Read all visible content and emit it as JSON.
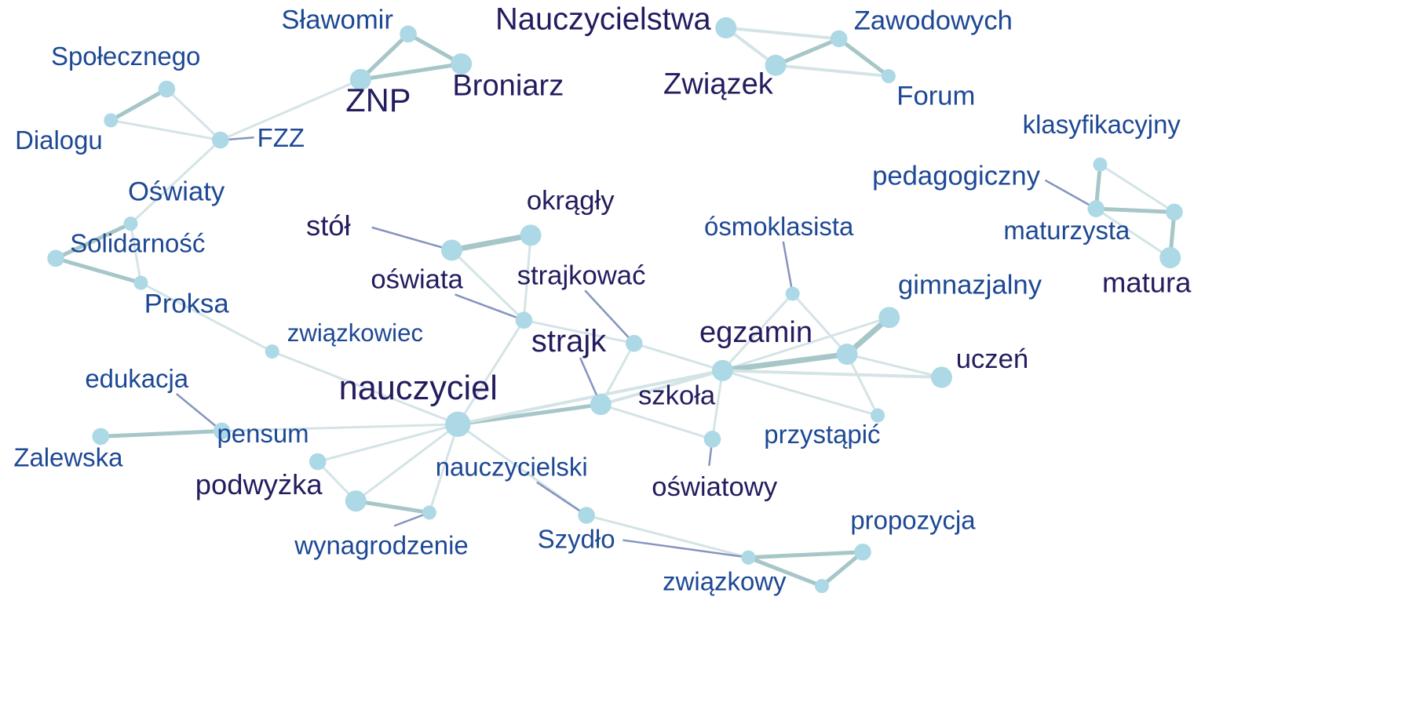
{
  "colors": {
    "node": "#add8e6",
    "edge_light": "#d4e4e6",
    "edge_mid": "#a6c6c8",
    "leader": "#8594be",
    "label_dark": "#231c5e",
    "label_blue": "#1d4894"
  },
  "nodes": [
    {
      "id": "slawomir",
      "label": "Sławomir",
      "size": 2,
      "tone": "blue"
    },
    {
      "id": "broniarz",
      "label": "Broniarz",
      "size": 3,
      "tone": "dark"
    },
    {
      "id": "znp",
      "label": "ZNP",
      "size": 3,
      "tone": "dark"
    },
    {
      "id": "spolecznego",
      "label": "Społecznego",
      "size": 2,
      "tone": "blue"
    },
    {
      "id": "dialogu",
      "label": "Dialogu",
      "size": 1,
      "tone": "blue"
    },
    {
      "id": "fzz",
      "label": "FZZ",
      "size": 2,
      "tone": "blue"
    },
    {
      "id": "nauczycielstwa",
      "label": "Nauczycielstwa",
      "size": 3,
      "tone": "dark"
    },
    {
      "id": "zawodowych",
      "label": "Zawodowych",
      "size": 2,
      "tone": "blue"
    },
    {
      "id": "zwiazek",
      "label": "Związek",
      "size": 3,
      "tone": "dark"
    },
    {
      "id": "forum",
      "label": "Forum",
      "size": 1,
      "tone": "blue"
    },
    {
      "id": "klasyfikacyjny",
      "label": "klasyfikacyjny",
      "size": 1,
      "tone": "blue"
    },
    {
      "id": "pedagogiczny",
      "label": "pedagogiczny",
      "size": 2,
      "tone": "blue"
    },
    {
      "id": "maturzysta",
      "label": "maturzysta",
      "size": 2,
      "tone": "blue"
    },
    {
      "id": "matura",
      "label": "matura",
      "size": 3,
      "tone": "dark"
    },
    {
      "id": "oswiaty",
      "label": "Oświaty",
      "size": 1,
      "tone": "blue"
    },
    {
      "id": "solidarnosc",
      "label": "Solidarność",
      "size": 1,
      "tone": "blue"
    },
    {
      "id": "proksa",
      "label": "Proksa",
      "size": 1,
      "tone": "blue"
    },
    {
      "id": "solid_node",
      "label": "",
      "size": 2,
      "tone": "blue"
    },
    {
      "id": "stol",
      "label": "stół",
      "size": 3,
      "tone": "dark"
    },
    {
      "id": "okragly",
      "label": "okrągły",
      "size": 3,
      "tone": "dark"
    },
    {
      "id": "oswiata",
      "label": "oświata",
      "size": 2,
      "tone": "dark"
    },
    {
      "id": "strajkowac",
      "label": "strajkować",
      "size": 2,
      "tone": "dark"
    },
    {
      "id": "osmoklasista",
      "label": "ósmoklasista",
      "size": 1,
      "tone": "blue"
    },
    {
      "id": "gimnazjalny",
      "label": "gimnazjalny",
      "size": 3,
      "tone": "blue"
    },
    {
      "id": "egzamin",
      "label": "egzamin",
      "size": 3,
      "tone": "dark"
    },
    {
      "id": "egz_hub",
      "label": "",
      "size": 3,
      "tone": "dark"
    },
    {
      "id": "uczen",
      "label": "uczeń",
      "size": 3,
      "tone": "dark"
    },
    {
      "id": "przystapic",
      "label": "przystąpić",
      "size": 1,
      "tone": "blue"
    },
    {
      "id": "szkola",
      "label": "szkoła",
      "size": 2,
      "tone": "dark"
    },
    {
      "id": "oswiatowy",
      "label": "oświatowy",
      "size": 2,
      "tone": "dark"
    },
    {
      "id": "strajk",
      "label": "strajk",
      "size": 3,
      "tone": "dark"
    },
    {
      "id": "nauczyciel",
      "label": "nauczyciel",
      "size": 4,
      "tone": "dark"
    },
    {
      "id": "zwiazkowiec",
      "label": "związkowiec",
      "size": 1,
      "tone": "blue"
    },
    {
      "id": "edukacja",
      "label": "edukacja",
      "size": 1,
      "tone": "blue"
    },
    {
      "id": "pensum",
      "label": "pensum",
      "size": 2,
      "tone": "blue"
    },
    {
      "id": "zalewska",
      "label": "Zalewska",
      "size": 2,
      "tone": "blue"
    },
    {
      "id": "podwyzka",
      "label": "podwyżka",
      "size": 3,
      "tone": "dark"
    },
    {
      "id": "podw_node",
      "label": "",
      "size": 2,
      "tone": "dark"
    },
    {
      "id": "nauczycielski",
      "label": "nauczycielski",
      "size": 2,
      "tone": "blue"
    },
    {
      "id": "wynagrodzenie",
      "label": "wynagrodzenie",
      "size": 1,
      "tone": "blue"
    },
    {
      "id": "szydlo",
      "label": "Szydło",
      "size": 1,
      "tone": "blue"
    },
    {
      "id": "zwiazkowy",
      "label": "związkowy",
      "size": 1,
      "tone": "blue"
    },
    {
      "id": "propozycja",
      "label": "propozycja",
      "size": 2,
      "tone": "blue"
    },
    {
      "id": "zwk_node",
      "label": "",
      "size": 1,
      "tone": "blue"
    }
  ],
  "edges": [
    {
      "a": "slawomir",
      "b": "broniarz",
      "strength": 3
    },
    {
      "a": "slawomir",
      "b": "znp",
      "strength": 3
    },
    {
      "a": "znp",
      "b": "broniarz",
      "strength": 3
    },
    {
      "a": "znp",
      "b": "fzz",
      "strength": 1
    },
    {
      "a": "dialogu",
      "b": "spolecznego",
      "strength": 3
    },
    {
      "a": "spolecznego",
      "b": "fzz",
      "strength": 1
    },
    {
      "a": "dialogu",
      "b": "fzz",
      "strength": 1
    },
    {
      "a": "fzz",
      "b": "oswiaty",
      "strength": 1
    },
    {
      "a": "nauczycielstwa",
      "b": "zawodowych",
      "strength": 2
    },
    {
      "a": "nauczycielstwa",
      "b": "zwiazek",
      "strength": 2
    },
    {
      "a": "zwiazek",
      "b": "zawodowych",
      "strength": 3
    },
    {
      "a": "zawodowych",
      "b": "forum",
      "strength": 3
    },
    {
      "a": "zwiazek",
      "b": "forum",
      "strength": 2
    },
    {
      "a": "klasyfikacyjny",
      "b": "pedagogiczny",
      "strength": 3
    },
    {
      "a": "klasyfikacyjny",
      "b": "maturzysta",
      "strength": 1
    },
    {
      "a": "pedagogiczny",
      "b": "maturzysta",
      "strength": 3
    },
    {
      "a": "pedagogiczny",
      "b": "matura",
      "strength": 1
    },
    {
      "a": "maturzysta",
      "b": "matura",
      "strength": 3
    },
    {
      "a": "oswiaty",
      "b": "solid_node",
      "strength": 3
    },
    {
      "a": "oswiaty",
      "b": "proksa",
      "strength": 1
    },
    {
      "a": "solid_node",
      "b": "proksa",
      "strength": 3
    },
    {
      "a": "proksa",
      "b": "zwiazkowiec",
      "strength": 1
    },
    {
      "a": "zwiazkowiec",
      "b": "nauczyciel",
      "strength": 1
    },
    {
      "a": "stol",
      "b": "okragly",
      "strength": 4
    },
    {
      "a": "stol",
      "b": "oswiata",
      "strength": 1
    },
    {
      "a": "okragly",
      "b": "oswiata",
      "strength": 1
    },
    {
      "a": "oswiata",
      "b": "nauczyciel",
      "strength": 1
    },
    {
      "a": "oswiata",
      "b": "strajkowac",
      "strength": 1
    },
    {
      "a": "strajkowac",
      "b": "strajk",
      "strength": 1
    },
    {
      "a": "strajkowac",
      "b": "egzamin",
      "strength": 1
    },
    {
      "a": "osmoklasista",
      "b": "egzamin",
      "strength": 1
    },
    {
      "a": "osmoklasista",
      "b": "egz_hub",
      "strength": 1
    },
    {
      "a": "gimnazjalny",
      "b": "egz_hub",
      "strength": 4
    },
    {
      "a": "gimnazjalny",
      "b": "egzamin",
      "strength": 1
    },
    {
      "a": "egzamin",
      "b": "egz_hub",
      "strength": 4
    },
    {
      "a": "egzamin",
      "b": "uczen",
      "strength": 2
    },
    {
      "a": "egz_hub",
      "b": "uczen",
      "strength": 1
    },
    {
      "a": "egzamin",
      "b": "przystapic",
      "strength": 1
    },
    {
      "a": "egz_hub",
      "b": "przystapic",
      "strength": 1
    },
    {
      "a": "egzamin",
      "b": "szkola",
      "strength": 1
    },
    {
      "a": "egzamin",
      "b": "strajk",
      "strength": 2
    },
    {
      "a": "strajk",
      "b": "nauczyciel",
      "strength": 3
    },
    {
      "a": "strajk",
      "b": "szkola",
      "strength": 1
    },
    {
      "a": "nauczyciel",
      "b": "egzamin",
      "strength": 2
    },
    {
      "a": "nauczyciel",
      "b": "pensum",
      "strength": 1
    },
    {
      "a": "pensum",
      "b": "zalewska",
      "strength": 3
    },
    {
      "a": "nauczyciel",
      "b": "podw_node",
      "strength": 1
    },
    {
      "a": "nauczyciel",
      "b": "podwyzka",
      "strength": 1
    },
    {
      "a": "podw_node",
      "b": "podwyzka",
      "strength": 1
    },
    {
      "a": "podwyzka",
      "b": "wynagrodzenie",
      "strength": 3
    },
    {
      "a": "nauczyciel",
      "b": "wynagrodzenie",
      "strength": 1
    },
    {
      "a": "nauczyciel",
      "b": "nauczycielski",
      "strength": 1
    },
    {
      "a": "nauczycielski",
      "b": "zwk_node",
      "strength": 1
    },
    {
      "a": "zwk_node",
      "b": "propozycja",
      "strength": 3
    },
    {
      "a": "zwk_node",
      "b": "zwiazkowy",
      "strength": 3
    },
    {
      "a": "zwiazkowy",
      "b": "propozycja",
      "strength": 3
    }
  ]
}
